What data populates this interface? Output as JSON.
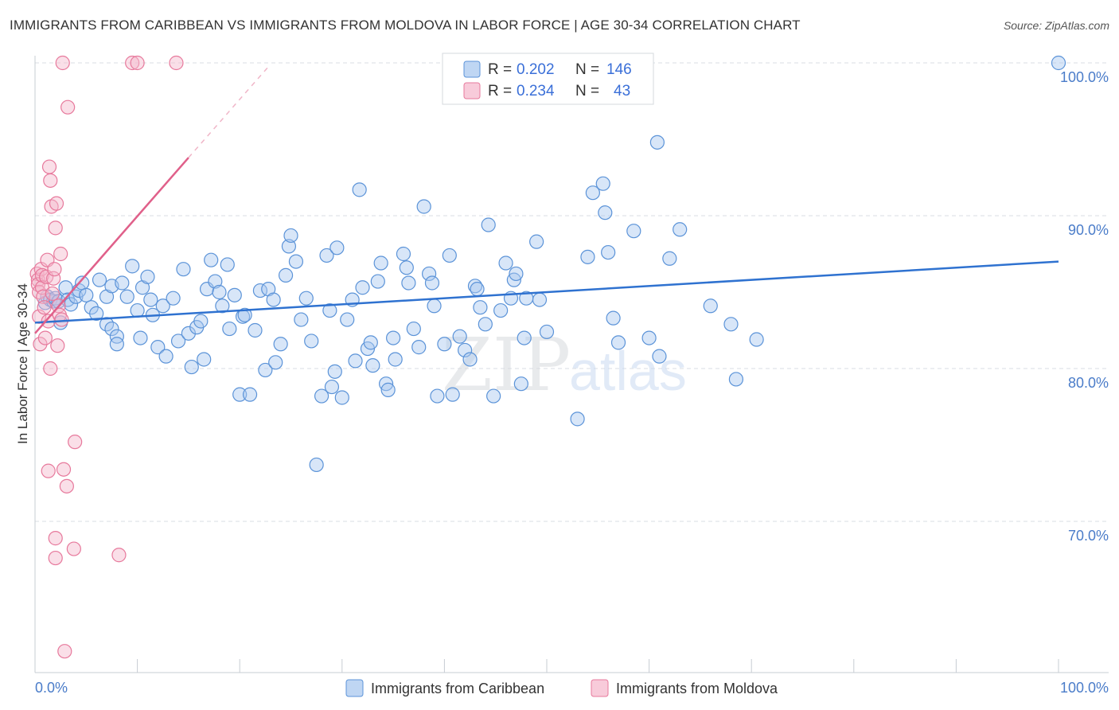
{
  "title": "IMMIGRANTS FROM CARIBBEAN VS IMMIGRANTS FROM MOLDOVA IN LABOR FORCE | AGE 30-34 CORRELATION CHART",
  "source": "Source: ZipAtlas.com",
  "watermark": {
    "zip": "ZIP",
    "atlas": "atlas"
  },
  "colors": {
    "caribbean_fill": "#a9c8ef",
    "caribbean_stroke": "#5b93d8",
    "caribbean_line": "#2f72d0",
    "moldova_fill": "#f5b9cd",
    "moldova_stroke": "#e7799c",
    "moldova_line": "#e0608a",
    "axis_text": "#4a7cc9",
    "grid": "#d9dde3"
  },
  "chart_data": {
    "type": "scatter",
    "title": "IMMIGRANTS FROM CARIBBEAN VS IMMIGRANTS FROM MOLDOVA IN LABOR FORCE | AGE 30-34 CORRELATION CHART",
    "xlabel": "",
    "ylabel": "In Labor Force | Age 30-34",
    "xlim": [
      0,
      100
    ],
    "ylim": [
      60,
      100
    ],
    "x_tick_labels": [
      "0.0%",
      "100.0%"
    ],
    "y_ticks": [
      {
        "value": 100,
        "label": "100.0%"
      },
      {
        "value": 90,
        "label": "90.0%"
      },
      {
        "value": 80,
        "label": "80.0%"
      },
      {
        "value": 70,
        "label": "70.0%"
      }
    ],
    "legend": {
      "position": "top-center",
      "entries": [
        {
          "r_label": "R = ",
          "r_value": "0.202",
          "n_label": "N = ",
          "n_value": "146"
        },
        {
          "r_label": "R = ",
          "r_value": "0.234",
          "n_label": "N = ",
          "n_value": "43"
        }
      ]
    },
    "series": [
      {
        "name": "Immigrants from Caribbean",
        "r": 0.202,
        "n": 146,
        "trend": {
          "x0": 0,
          "y0": 83.0,
          "x1": 100,
          "y1": 87.0
        },
        "points": [
          [
            1.0,
            84.3
          ],
          [
            1.2,
            84.7
          ],
          [
            1.5,
            84.5
          ],
          [
            1.8,
            84.4
          ],
          [
            2.0,
            84.6
          ],
          [
            2.3,
            84.4
          ],
          [
            2.5,
            83.0
          ],
          [
            3.0,
            85.3
          ],
          [
            3.2,
            84.5
          ],
          [
            3.5,
            84.2
          ],
          [
            4.0,
            84.7
          ],
          [
            4.3,
            85.1
          ],
          [
            4.6,
            85.6
          ],
          [
            5.0,
            84.8
          ],
          [
            5.5,
            84.0
          ],
          [
            6.0,
            83.6
          ],
          [
            6.3,
            85.8
          ],
          [
            7.0,
            84.7
          ],
          [
            7.5,
            85.4
          ],
          [
            7.0,
            82.9
          ],
          [
            7.5,
            82.6
          ],
          [
            8.0,
            82.1
          ],
          [
            8.5,
            85.6
          ],
          [
            8.0,
            81.6
          ],
          [
            9.0,
            84.7
          ],
          [
            9.5,
            86.7
          ],
          [
            10.0,
            83.8
          ],
          [
            10.5,
            85.3
          ],
          [
            10.3,
            82.0
          ],
          [
            11.0,
            86.0
          ],
          [
            11.3,
            84.5
          ],
          [
            11.5,
            83.5
          ],
          [
            12.0,
            81.4
          ],
          [
            12.5,
            84.1
          ],
          [
            12.8,
            80.8
          ],
          [
            13.5,
            84.6
          ],
          [
            14.0,
            81.8
          ],
          [
            14.5,
            86.5
          ],
          [
            15.0,
            82.3
          ],
          [
            15.3,
            80.1
          ],
          [
            15.8,
            82.7
          ],
          [
            16.2,
            83.1
          ],
          [
            16.8,
            85.2
          ],
          [
            16.5,
            80.6
          ],
          [
            17.2,
            87.1
          ],
          [
            17.6,
            85.7
          ],
          [
            18.0,
            85.0
          ],
          [
            18.3,
            84.1
          ],
          [
            18.8,
            86.8
          ],
          [
            19.0,
            82.6
          ],
          [
            19.5,
            84.8
          ],
          [
            20.0,
            78.3
          ],
          [
            20.3,
            83.4
          ],
          [
            20.5,
            83.5
          ],
          [
            21.0,
            78.3
          ],
          [
            21.5,
            82.5
          ],
          [
            22.0,
            85.1
          ],
          [
            22.5,
            79.9
          ],
          [
            22.8,
            85.2
          ],
          [
            23.3,
            84.5
          ],
          [
            23.5,
            80.4
          ],
          [
            24.0,
            81.6
          ],
          [
            24.5,
            86.1
          ],
          [
            24.8,
            88.0
          ],
          [
            25.0,
            88.7
          ],
          [
            25.5,
            87.0
          ],
          [
            26.0,
            83.2
          ],
          [
            26.5,
            84.6
          ],
          [
            27.0,
            81.8
          ],
          [
            27.5,
            73.7
          ],
          [
            28.0,
            78.2
          ],
          [
            28.5,
            87.4
          ],
          [
            28.8,
            83.8
          ],
          [
            29.0,
            78.8
          ],
          [
            29.3,
            79.8
          ],
          [
            29.5,
            87.9
          ],
          [
            30.0,
            78.1
          ],
          [
            30.5,
            83.2
          ],
          [
            31.0,
            84.5
          ],
          [
            31.3,
            80.5
          ],
          [
            31.7,
            91.7
          ],
          [
            32.0,
            85.3
          ],
          [
            32.5,
            81.3
          ],
          [
            32.8,
            81.7
          ],
          [
            33.0,
            80.2
          ],
          [
            33.5,
            85.7
          ],
          [
            33.8,
            86.9
          ],
          [
            34.3,
            79.0
          ],
          [
            34.5,
            78.6
          ],
          [
            35.0,
            82.0
          ],
          [
            35.2,
            80.6
          ],
          [
            36.0,
            87.5
          ],
          [
            36.3,
            86.6
          ],
          [
            36.5,
            85.6
          ],
          [
            37.0,
            82.6
          ],
          [
            37.5,
            81.4
          ],
          [
            38.0,
            90.6
          ],
          [
            38.5,
            86.2
          ],
          [
            38.8,
            85.6
          ],
          [
            39.0,
            84.1
          ],
          [
            39.3,
            78.2
          ],
          [
            40.0,
            81.6
          ],
          [
            40.5,
            87.4
          ],
          [
            40.8,
            78.3
          ],
          [
            41.5,
            82.1
          ],
          [
            42.0,
            81.2
          ],
          [
            42.5,
            80.6
          ],
          [
            43.0,
            85.4
          ],
          [
            43.2,
            85.2
          ],
          [
            43.5,
            84.0
          ],
          [
            44.0,
            82.9
          ],
          [
            44.3,
            89.4
          ],
          [
            44.8,
            78.2
          ],
          [
            45.5,
            83.8
          ],
          [
            46.0,
            86.9
          ],
          [
            46.5,
            84.6
          ],
          [
            46.8,
            85.8
          ],
          [
            47.0,
            86.2
          ],
          [
            47.5,
            79.0
          ],
          [
            47.8,
            82.0
          ],
          [
            48.0,
            84.6
          ],
          [
            49.0,
            88.3
          ],
          [
            49.3,
            84.5
          ],
          [
            50.0,
            82.4
          ],
          [
            53.0,
            76.7
          ],
          [
            54.0,
            87.3
          ],
          [
            54.5,
            91.5
          ],
          [
            55.5,
            92.1
          ],
          [
            55.7,
            90.2
          ],
          [
            56.0,
            87.6
          ],
          [
            56.5,
            83.3
          ],
          [
            57.0,
            81.7
          ],
          [
            58.5,
            89.0
          ],
          [
            60.0,
            82.0
          ],
          [
            60.8,
            94.8
          ],
          [
            61.0,
            80.8
          ],
          [
            62.0,
            87.2
          ],
          [
            63.0,
            89.1
          ],
          [
            66.0,
            84.1
          ],
          [
            68.0,
            82.9
          ],
          [
            68.5,
            79.3
          ],
          [
            70.5,
            81.9
          ],
          [
            100,
            100
          ]
        ]
      },
      {
        "name": "Immigrants from Moldova",
        "r": 0.234,
        "n": 43,
        "trend": {
          "x0": 0,
          "y0": 82.3,
          "x1": 15.0,
          "y1": 93.8,
          "dash_to_x": 23.0,
          "dash_to_y": 99.9
        },
        "points": [
          [
            0.2,
            86.2
          ],
          [
            0.3,
            85.8
          ],
          [
            0.3,
            85.5
          ],
          [
            0.4,
            85.0
          ],
          [
            0.4,
            83.4
          ],
          [
            0.5,
            81.6
          ],
          [
            0.6,
            86.5
          ],
          [
            0.7,
            86.1
          ],
          [
            0.7,
            85.3
          ],
          [
            0.8,
            84.7
          ],
          [
            0.9,
            84.0
          ],
          [
            1.0,
            82.0
          ],
          [
            1.1,
            86.0
          ],
          [
            1.2,
            87.1
          ],
          [
            1.3,
            83.1
          ],
          [
            1.3,
            73.3
          ],
          [
            1.4,
            93.2
          ],
          [
            1.5,
            80.0
          ],
          [
            1.5,
            92.3
          ],
          [
            1.6,
            90.6
          ],
          [
            1.7,
            84.9
          ],
          [
            1.8,
            85.9
          ],
          [
            1.9,
            86.5
          ],
          [
            2.0,
            89.2
          ],
          [
            2.0,
            68.9
          ],
          [
            2.0,
            67.6
          ],
          [
            2.1,
            90.8
          ],
          [
            2.2,
            81.5
          ],
          [
            2.3,
            84.1
          ],
          [
            2.4,
            83.5
          ],
          [
            2.5,
            87.5
          ],
          [
            2.6,
            83.2
          ],
          [
            2.7,
            100.0
          ],
          [
            2.8,
            73.4
          ],
          [
            2.9,
            61.5
          ],
          [
            3.1,
            72.3
          ],
          [
            3.2,
            97.1
          ],
          [
            3.8,
            68.2
          ],
          [
            3.9,
            75.2
          ],
          [
            8.2,
            67.8
          ],
          [
            9.5,
            100.0
          ],
          [
            10.0,
            100.0
          ],
          [
            13.8,
            100.0
          ]
        ]
      }
    ]
  }
}
